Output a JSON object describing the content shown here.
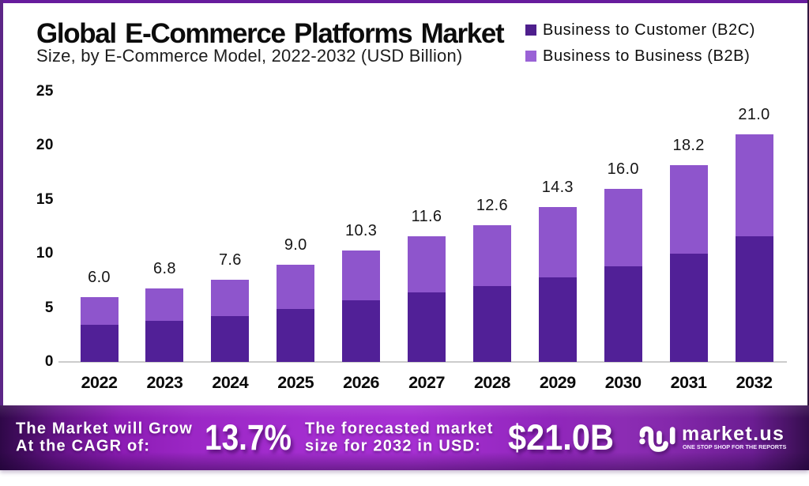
{
  "header": {
    "title": "Global E-Commerce Platforms Market",
    "subtitle": "Size, by E-Commerce Model, 2022-2032 (USD Billion)"
  },
  "legend": {
    "items": [
      {
        "label": "Business to Customer (B2C)",
        "color": "#4e1f8d"
      },
      {
        "label": "Business to Business (B2B)",
        "color": "#9a62d6"
      }
    ]
  },
  "chart_data": {
    "type": "bar",
    "stacked": true,
    "title": "Global E-Commerce Platforms Market",
    "subtitle": "Size, by E-Commerce Model, 2022-2032 (USD Billion)",
    "unit": "USD Billion",
    "categories": [
      "2022",
      "2023",
      "2024",
      "2025",
      "2026",
      "2027",
      "2028",
      "2029",
      "2030",
      "2031",
      "2032"
    ],
    "series": [
      {
        "name": "Business to Customer (B2C)",
        "color": "#512097",
        "values": [
          3.4,
          3.8,
          4.2,
          4.9,
          5.7,
          6.4,
          7.0,
          7.8,
          8.8,
          10.0,
          11.6
        ]
      },
      {
        "name": "Business to Business (B2B)",
        "color": "#8e55cc",
        "values": [
          2.6,
          3.0,
          3.4,
          4.1,
          4.6,
          5.2,
          5.6,
          6.5,
          7.2,
          8.2,
          9.4
        ]
      }
    ],
    "total_labels": [
      "6.0",
      "6.8",
      "7.6",
      "9.0",
      "10.3",
      "11.6",
      "12.6",
      "14.3",
      "16.0",
      "18.2",
      "21.0"
    ],
    "ylim": [
      0,
      25
    ],
    "yticks": [
      0,
      5,
      10,
      15,
      20,
      25
    ],
    "grid": false,
    "legend_position": "top-right"
  },
  "banner": {
    "cagr_caption_line1": "The Market will Grow",
    "cagr_caption_line2": "At the CAGR of:",
    "cagr_value": "13.7%",
    "forecast_caption_line1": "The forecasted market",
    "forecast_caption_line2": "size for 2032 in USD:",
    "forecast_value": "$21.0B",
    "logo_name": "market.us",
    "logo_tagline": "ONE STOP SHOP FOR THE REPORTS"
  }
}
